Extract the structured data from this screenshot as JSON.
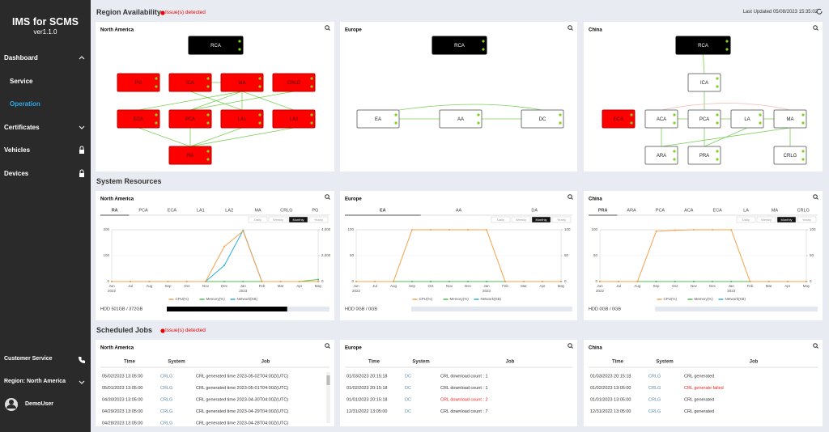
{
  "sidebar": {
    "title": "IMS for SCMS",
    "version": "ver1.1.0",
    "menu": [
      "Dashboard",
      "Service",
      "Operation",
      "Certificates",
      "Vehicles",
      "Devices"
    ],
    "customer_service": "Customer Service",
    "region": "Region: North America",
    "user": "DemoUser"
  },
  "availability": {
    "title": "Region Availability",
    "issue": "Issue(s) detected",
    "last_updated": "Last Updated 05/08/2023 15:35:02",
    "panels": [
      {
        "title": "North America",
        "nodes": [
          {
            "label": "RCA",
            "status": "root"
          },
          {
            "label": "PG",
            "status": "error"
          },
          {
            "label": "ICA",
            "status": "error"
          },
          {
            "label": "MA",
            "status": "error"
          },
          {
            "label": "CRLG",
            "status": "error"
          },
          {
            "label": "ECA",
            "status": "error"
          },
          {
            "label": "PCA",
            "status": "error"
          },
          {
            "label": "LA1",
            "status": "error"
          },
          {
            "label": "LA2",
            "status": "error"
          },
          {
            "label": "RA",
            "status": "error"
          }
        ]
      },
      {
        "title": "Europe",
        "nodes": [
          {
            "label": "RCA",
            "status": "root"
          },
          {
            "label": "EA",
            "status": "ok"
          },
          {
            "label": "AA",
            "status": "ok"
          },
          {
            "label": "DC",
            "status": "ok"
          }
        ]
      },
      {
        "title": "China",
        "nodes": [
          {
            "label": "RCA",
            "status": "root"
          },
          {
            "label": "ICA",
            "status": "ok"
          },
          {
            "label": "ECA",
            "status": "error"
          },
          {
            "label": "ACA",
            "status": "ok"
          },
          {
            "label": "PCA",
            "status": "ok"
          },
          {
            "label": "LA",
            "status": "ok"
          },
          {
            "label": "MA",
            "status": "ok"
          },
          {
            "label": "ARA",
            "status": "ok"
          },
          {
            "label": "PRA",
            "status": "ok"
          },
          {
            "label": "CRLG",
            "status": "ok"
          }
        ]
      }
    ]
  },
  "resources": {
    "title": "System Resources",
    "panels": [
      {
        "title": "North America",
        "tabs": [
          "RA",
          "PCA",
          "ECA",
          "LA1",
          "LA2",
          "MA",
          "CRLG",
          "PG"
        ],
        "active_tab": "RA",
        "periods": [
          "Daily",
          "Weekly",
          "Monthly",
          "Yearly"
        ],
        "active_period": "Monthly",
        "chart": {
          "type": "line",
          "categories": [
            "Jun",
            "Jul",
            "Aug",
            "Sep",
            "Oct",
            "Nov",
            "Dec",
            "Jan",
            "Feb",
            "Mar",
            "Apr",
            "May"
          ],
          "year_labels": [
            "2022",
            null,
            null,
            null,
            null,
            null,
            null,
            "2023",
            null,
            null,
            null,
            null
          ],
          "ylim": [
            0,
            200
          ],
          "yticks": [
            0,
            100,
            200
          ],
          "y2lim": [
            0,
            4000
          ],
          "y2ticks": [
            0,
            {
              "value": 2000,
              "label": "2,000"
            },
            {
              "value": 4000,
              "label": "4,000"
            }
          ],
          "grid": true,
          "series": [
            {
              "name": "CPU(%)",
              "color": "#f5a04a",
              "values": [
                0,
                0,
                0,
                0,
                0,
                0,
                135,
                195,
                0,
                0,
                0,
                0
              ]
            },
            {
              "name": "Memory(%)",
              "color": "#4cc24a",
              "values": [
                0,
                0,
                0,
                0,
                0,
                0,
                0,
                0,
                0,
                0,
                0,
                8
              ]
            },
            {
              "name": "Network(KB)",
              "color": "#2ab0e0",
              "axis": "y2",
              "values": [
                0,
                0,
                0,
                0,
                0,
                0,
                1250,
                3950,
                0,
                0,
                0,
                0
              ]
            }
          ]
        },
        "hdd": {
          "label": "HDD 501GB / 372GB",
          "usage": 74
        }
      },
      {
        "title": "Europe",
        "tabs": [
          "EA",
          "AA",
          "DA"
        ],
        "active_tab": "EA",
        "periods": [
          "Daily",
          "Weekly",
          "Monthly",
          "Yearly"
        ],
        "active_period": "Monthly",
        "chart": {
          "type": "line",
          "categories": [
            "Jun",
            "Jul",
            "Aug",
            "Sep",
            "Oct",
            "Nov",
            "Dec",
            "Jan",
            "Feb",
            "Mar",
            "Apr",
            "May"
          ],
          "year_labels": [
            "2022",
            null,
            null,
            null,
            null,
            null,
            null,
            "2023",
            null,
            null,
            null,
            null
          ],
          "ylim": [
            0,
            100
          ],
          "yticks": [
            0,
            50,
            100
          ],
          "y2lim": [
            0,
            100
          ],
          "y2ticks": [
            0,
            50,
            100
          ],
          "grid": true,
          "series": [
            {
              "name": "CPU(%)",
              "color": "#f5a04a",
              "values": [
                0,
                0,
                0,
                100,
                100,
                100,
                100,
                100,
                0,
                0,
                0,
                0
              ]
            },
            {
              "name": "Memory(%)",
              "color": "#4cc24a",
              "values": [
                0,
                0,
                0,
                0,
                0,
                0,
                0,
                0,
                0,
                0,
                0,
                0
              ]
            },
            {
              "name": "Network(KB)",
              "color": "#2ab0e0",
              "axis": "y2",
              "values": [
                0,
                0,
                0,
                0,
                0,
                0,
                0,
                0,
                0,
                0,
                0,
                0
              ]
            }
          ]
        },
        "hdd": {
          "label": "HDD 0GB / 0GB",
          "usage": 0
        }
      },
      {
        "title": "China",
        "tabs": [
          "PRA",
          "ARA",
          "PCA",
          "ACA",
          "ECA",
          "LA",
          "MA",
          "CRLG"
        ],
        "active_tab": "PRA",
        "periods": [
          "Daily",
          "Weekly",
          "Monthly",
          "Yearly"
        ],
        "active_period": "Monthly",
        "chart": {
          "type": "line",
          "categories": [
            "Jun",
            "Jul",
            "Aug",
            "Sep",
            "Oct",
            "Nov",
            "Dec",
            "Jan",
            "Feb",
            "Mar",
            "Apr",
            "May"
          ],
          "year_labels": [
            "2022",
            null,
            null,
            null,
            null,
            null,
            null,
            "2023",
            null,
            null,
            null,
            null
          ],
          "ylim": [
            0,
            100
          ],
          "yticks": [
            0,
            50,
            100
          ],
          "y2lim": [
            0,
            100
          ],
          "y2ticks": [
            0,
            50,
            100
          ],
          "grid": true,
          "series": [
            {
              "name": "CPU(%)",
              "color": "#f5a04a",
              "values": [
                0,
                0,
                0,
                97,
                99,
                100,
                100,
                100,
                0,
                0,
                0,
                0
              ]
            },
            {
              "name": "Memory(%)",
              "color": "#4cc24a",
              "values": [
                0,
                0,
                0,
                0,
                0,
                0,
                0,
                0,
                0,
                0,
                0,
                0
              ]
            },
            {
              "name": "Network(KB)",
              "color": "#2ab0e0",
              "axis": "y2",
              "values": [
                0,
                0,
                0,
                0,
                0,
                0,
                0,
                0,
                0,
                0,
                0,
                0
              ]
            }
          ]
        },
        "hdd": {
          "label": "HDD 0GB / 0GB",
          "usage": 0
        }
      }
    ]
  },
  "jobs": {
    "title": "Scheduled Jobs",
    "issue": "Issue(s) detected",
    "panels": [
      {
        "title": "North America",
        "columns": [
          "Time",
          "System",
          "Job"
        ],
        "rows": [
          {
            "time": "05/02/2023 13:05:00",
            "system": "CRLG",
            "job": "CRL generated time 2023-05-02T04:00Z(UTC)",
            "error": false
          },
          {
            "time": "05/01/2023 13:05:00",
            "system": "CRLG",
            "job": "CRL generated time 2023-05-01T04:00Z(UTC)",
            "error": false
          },
          {
            "time": "04/30/2023 13:05:00",
            "system": "CRLG",
            "job": "CRL generated time 2023-04-30T04:00Z(UTC)",
            "error": false
          },
          {
            "time": "04/29/2023 13:05:00",
            "system": "CRLG",
            "job": "CRL generated time 2023-04-29T04:00Z(UTC)",
            "error": false
          },
          {
            "time": "04/28/2023 13:05:00",
            "system": "CRLG",
            "job": "CRL generated time 2023-04-28T04:00Z(UTC)",
            "error": false
          }
        ]
      },
      {
        "title": "Europe",
        "columns": [
          "Time",
          "System",
          "Job"
        ],
        "rows": [
          {
            "time": "01/03/2023 20:15:18",
            "system": "DC",
            "job": "CRL download count : 1",
            "error": false
          },
          {
            "time": "01/02/2023 20:15:18",
            "system": "DC",
            "job": "CRL download count : 1",
            "error": false
          },
          {
            "time": "01/01/2023 20:15:18",
            "system": "DC",
            "job": "CRL download count : 2",
            "error": true
          },
          {
            "time": "12/31/2022 13:05:00",
            "system": "DC",
            "job": "CRL download count : 7",
            "error": false
          }
        ]
      },
      {
        "title": "China",
        "columns": [
          "Time",
          "System",
          "Job"
        ],
        "rows": [
          {
            "time": "01/03/2023 20:15:18",
            "system": "CRLG",
            "job": "CRL generated",
            "error": false
          },
          {
            "time": "01/02/2023 13:05:00",
            "system": "CRLG",
            "job": "CRL generate failed",
            "error": true
          },
          {
            "time": "01/01/2023 13:05:00",
            "system": "CRLG",
            "job": "CRL generated",
            "error": false
          },
          {
            "time": "12/31/2022 13:05:00",
            "system": "CRLG",
            "job": "CRL generated",
            "error": false
          }
        ]
      }
    ]
  }
}
